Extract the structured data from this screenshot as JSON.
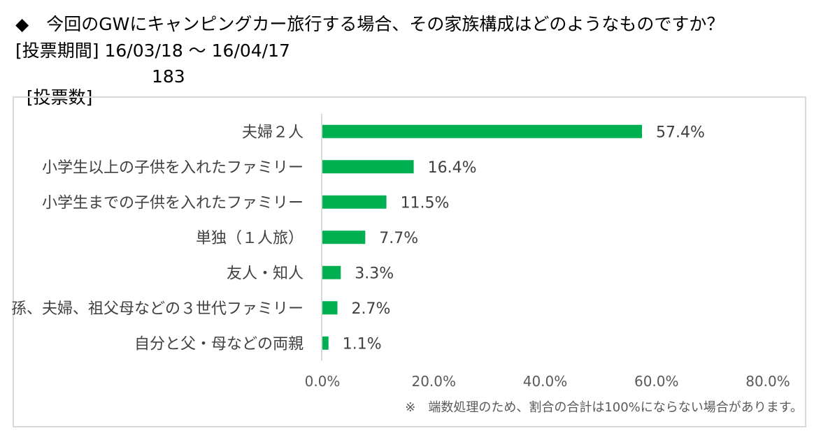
{
  "header": {
    "question": "◆　今回のGWにキャンピングカー旅行する場合、その家族構成はどのようなものですか？",
    "period": "[投票期間] 16/03/18 ～ 16/04/17",
    "votes_label": "[投票数]",
    "votes_value": "183"
  },
  "chart_data": {
    "type": "bar",
    "orientation": "horizontal",
    "categories": [
      "夫婦２人",
      "小学生以上の子供を入れたファミリー",
      "小学生までの子供を入れたファミリー",
      "単独（１人旅）",
      "友人・知人",
      "孫、夫婦、祖父母などの３世代ファミリー",
      "自分と父・母などの両親"
    ],
    "values": [
      57.4,
      16.4,
      11.5,
      7.7,
      3.3,
      2.7,
      1.1
    ],
    "data_labels": [
      "57.4%",
      "16.4%",
      "11.5%",
      "7.7%",
      "3.3%",
      "2.7%",
      "1.1%"
    ],
    "xlim": [
      0,
      80
    ],
    "x_ticks": [
      0,
      20,
      40,
      60,
      80
    ],
    "x_tick_labels": [
      "0.0%",
      "20.0%",
      "40.0%",
      "60.0%",
      "80.0%"
    ],
    "bar_color": "#00B050",
    "grid": false,
    "legend": "none"
  },
  "footnote": "※　端数処理のため、割合の合計は100%にならない場合があります。"
}
